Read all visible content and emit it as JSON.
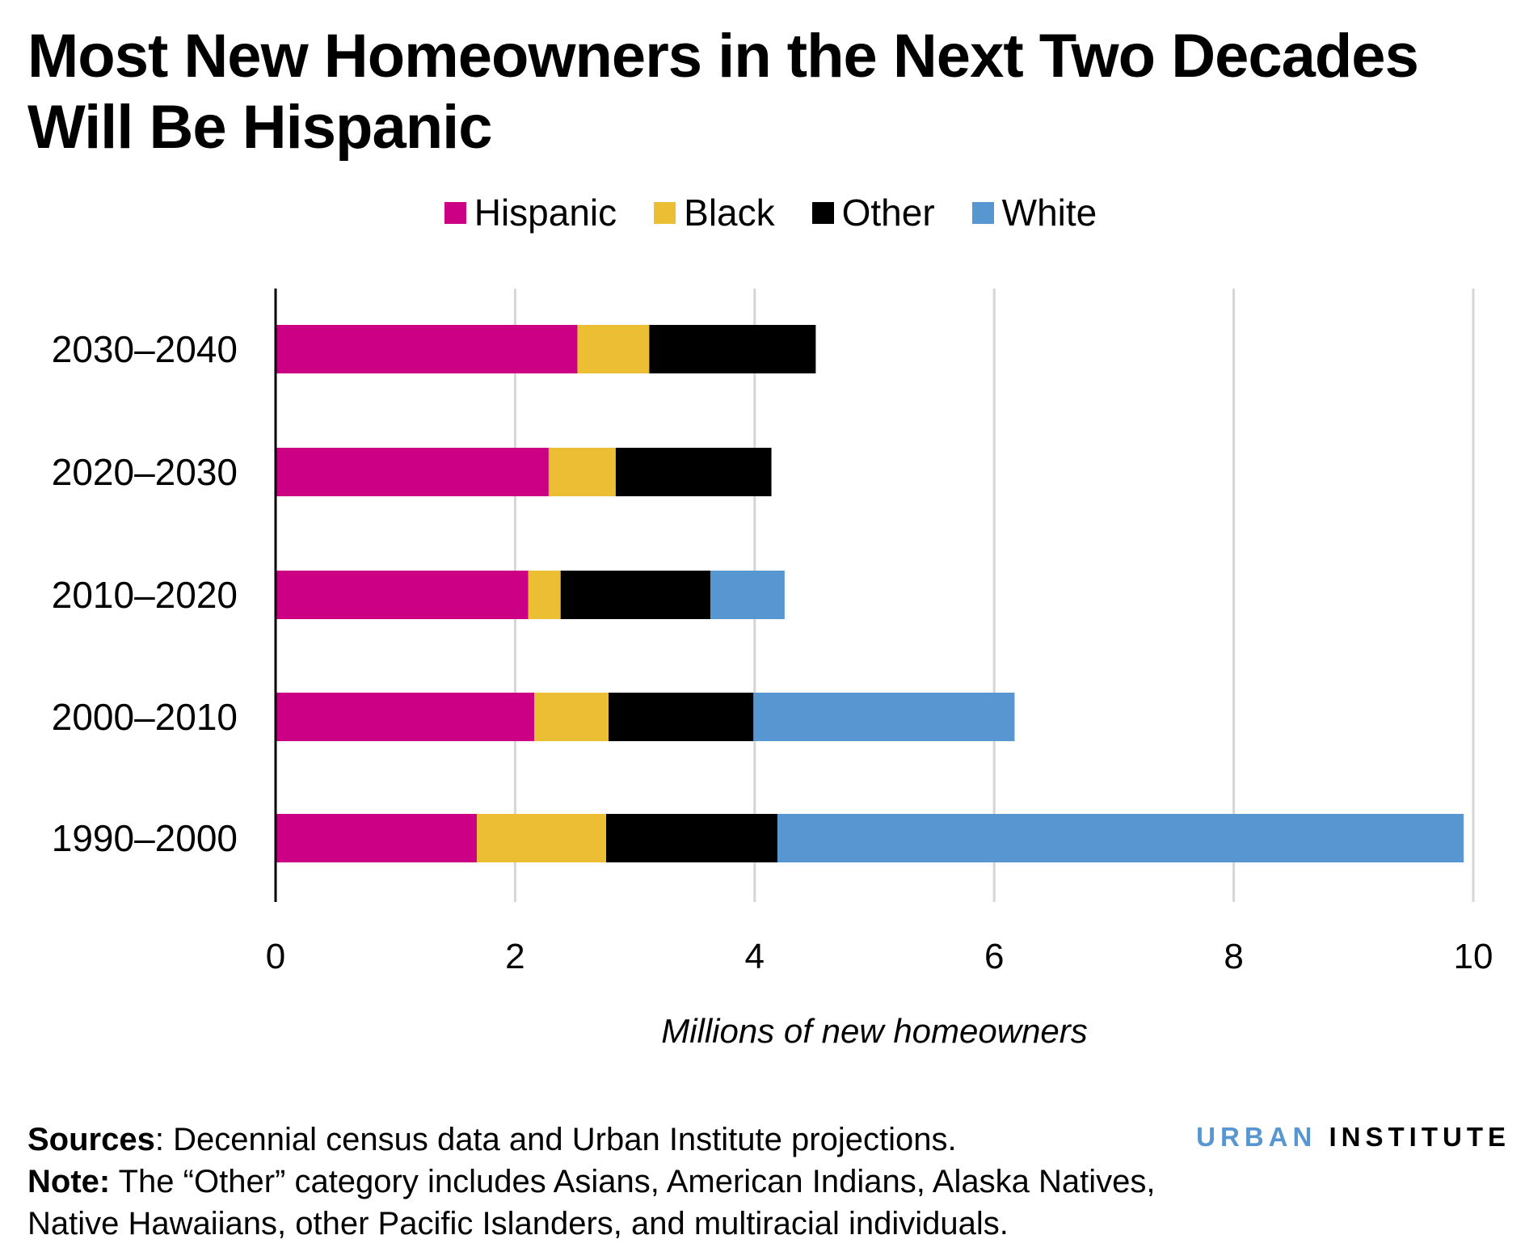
{
  "title": "Most New Homeowners in the Next Two Decades Will Be Hispanic",
  "chart_data": {
    "type": "bar",
    "orientation": "horizontal",
    "stacked": true,
    "categories": [
      "2030–2040",
      "2020–2030",
      "2010–2020",
      "2000–2010",
      "1990–2000"
    ],
    "series": [
      {
        "name": "Hispanic",
        "color": "#CC0084",
        "values": [
          2.52,
          2.28,
          2.11,
          2.16,
          1.68
        ]
      },
      {
        "name": "Black",
        "color": "#ECBE33",
        "values": [
          0.6,
          0.56,
          0.27,
          0.62,
          1.08
        ]
      },
      {
        "name": "Other",
        "color": "#000000",
        "values": [
          1.39,
          1.3,
          1.25,
          1.21,
          1.43
        ]
      },
      {
        "name": "White",
        "color": "#5796D1",
        "values": [
          0,
          0,
          0.62,
          2.18,
          5.73
        ]
      }
    ],
    "xlabel": "Millions of new homeowners",
    "xlim": [
      0,
      10
    ],
    "xticks": [
      "0",
      "2",
      "4",
      "6",
      "8",
      "10"
    ],
    "grid": "vertical",
    "legend": "top"
  },
  "footer": {
    "sources_label": "Sources",
    "sources_text": ": Decennial census data and Urban Institute projections.",
    "note_label": "Note:",
    "note_text": " The “Other” category includes Asians, American Indians, Alaska Natives, Native Hawaiians, other Pacific Islanders, and multiracial individuals."
  },
  "logo": {
    "part1": "URBAN",
    "part2": "INSTITUTE",
    "color1": "#5796D1"
  }
}
